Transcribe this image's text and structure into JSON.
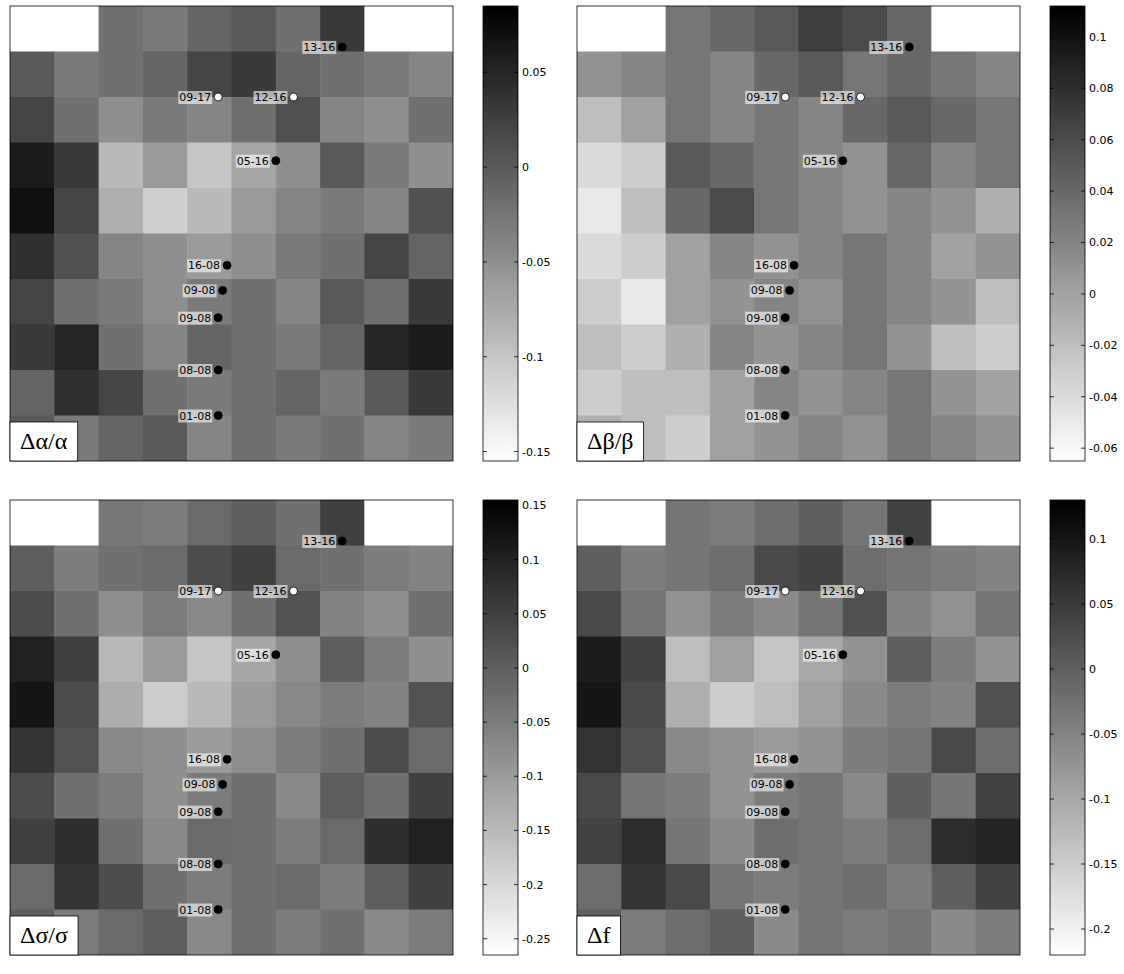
{
  "chart_data": [
    {
      "type": "heatmap",
      "title": "Δα/α",
      "xlim": [
        0,
        10
      ],
      "ylim": [
        10,
        0
      ],
      "tick_labels": false,
      "cells": [
        [
          null,
          null,
          -0.02,
          -0.03,
          -0.01,
          0.0,
          -0.02,
          0.03,
          null,
          null
        ],
        [
          0.0,
          -0.03,
          -0.02,
          -0.01,
          0.02,
          0.03,
          -0.01,
          -0.02,
          -0.03,
          -0.04
        ],
        [
          0.02,
          -0.02,
          -0.05,
          -0.03,
          -0.04,
          -0.02,
          0.01,
          -0.04,
          -0.05,
          -0.02
        ],
        [
          0.06,
          0.03,
          -0.09,
          -0.06,
          -0.1,
          -0.07,
          -0.05,
          0.0,
          -0.03,
          -0.05
        ],
        [
          0.07,
          0.02,
          -0.08,
          -0.11,
          -0.09,
          -0.06,
          -0.04,
          -0.03,
          -0.04,
          0.01
        ],
        [
          0.04,
          0.01,
          -0.04,
          -0.05,
          -0.06,
          -0.05,
          -0.03,
          -0.02,
          0.02,
          -0.01
        ],
        [
          0.02,
          -0.02,
          -0.03,
          -0.05,
          -0.03,
          -0.02,
          -0.04,
          0.0,
          -0.02,
          0.03
        ],
        [
          0.03,
          0.05,
          -0.02,
          -0.04,
          -0.01,
          -0.02,
          -0.03,
          -0.01,
          0.05,
          0.06
        ],
        [
          -0.01,
          0.04,
          0.02,
          -0.02,
          -0.03,
          -0.02,
          -0.01,
          -0.03,
          0.0,
          0.03
        ],
        [
          0.0,
          -0.03,
          -0.01,
          0.0,
          -0.04,
          -0.02,
          -0.03,
          -0.02,
          -0.04,
          -0.03
        ]
      ],
      "color_range": [
        -0.155,
        0.085
      ],
      "color_ticks": [
        0.05,
        0,
        -0.05,
        -0.1,
        -0.15
      ],
      "points": [
        {
          "label": "13-16",
          "x": 7.5,
          "y": 0.9,
          "color": "#000000"
        },
        {
          "label": "09-17",
          "x": 4.7,
          "y": 2.0,
          "color": "#ffffff"
        },
        {
          "label": "12-16",
          "x": 6.4,
          "y": 2.0,
          "color": "#ffffff"
        },
        {
          "label": "05-16",
          "x": 6.0,
          "y": 3.4,
          "color": "#000000"
        },
        {
          "label": "16-08",
          "x": 4.9,
          "y": 5.7,
          "color": "#000000"
        },
        {
          "label": "09-08",
          "x": 4.8,
          "y": 6.25,
          "color": "#000000"
        },
        {
          "label": "09-08",
          "x": 4.7,
          "y": 6.85,
          "color": "#000000"
        },
        {
          "label": "08-08",
          "x": 4.7,
          "y": 8.0,
          "color": "#000000"
        },
        {
          "label": "01-08",
          "x": 4.7,
          "y": 9.0,
          "color": "#000000"
        }
      ]
    },
    {
      "type": "heatmap",
      "title": "Δβ/β",
      "xlim": [
        0,
        10
      ],
      "ylim": [
        10,
        0
      ],
      "tick_labels": false,
      "cells": [
        [
          null,
          null,
          0.03,
          0.04,
          0.05,
          0.07,
          0.06,
          0.04,
          null,
          null
        ],
        [
          0.01,
          0.02,
          0.03,
          0.02,
          0.04,
          0.05,
          0.03,
          0.04,
          0.03,
          0.02
        ],
        [
          -0.02,
          0.0,
          0.03,
          0.02,
          0.03,
          0.02,
          0.04,
          0.05,
          0.04,
          0.03
        ],
        [
          -0.04,
          -0.03,
          0.05,
          0.04,
          0.03,
          0.02,
          0.01,
          0.04,
          0.02,
          0.03
        ],
        [
          -0.05,
          -0.02,
          0.04,
          0.06,
          0.03,
          0.02,
          0.01,
          0.02,
          0.01,
          -0.01
        ],
        [
          -0.04,
          -0.03,
          0.0,
          0.02,
          0.01,
          0.02,
          0.03,
          0.02,
          0.0,
          0.01
        ],
        [
          -0.03,
          -0.05,
          0.0,
          0.01,
          0.02,
          0.01,
          0.03,
          0.02,
          0.01,
          -0.02
        ],
        [
          -0.02,
          -0.03,
          -0.01,
          0.02,
          0.01,
          0.02,
          0.03,
          0.01,
          -0.02,
          -0.03
        ],
        [
          -0.03,
          -0.02,
          -0.02,
          0.0,
          0.02,
          0.01,
          0.02,
          0.03,
          0.01,
          0.0
        ],
        [
          -0.01,
          -0.02,
          -0.03,
          0.0,
          0.01,
          0.02,
          0.01,
          0.03,
          0.02,
          0.01
        ]
      ],
      "color_range": [
        -0.065,
        0.112
      ],
      "color_ticks": [
        0.1,
        0.08,
        0.06,
        0.04,
        0.02,
        0,
        -0.02,
        -0.04,
        -0.06
      ],
      "points": [
        {
          "label": "13-16",
          "x": 7.5,
          "y": 0.9,
          "color": "#000000"
        },
        {
          "label": "09-17",
          "x": 4.7,
          "y": 2.0,
          "color": "#ffffff"
        },
        {
          "label": "12-16",
          "x": 6.4,
          "y": 2.0,
          "color": "#ffffff"
        },
        {
          "label": "05-16",
          "x": 6.0,
          "y": 3.4,
          "color": "#000000"
        },
        {
          "label": "16-08",
          "x": 4.9,
          "y": 5.7,
          "color": "#000000"
        },
        {
          "label": "09-08",
          "x": 4.8,
          "y": 6.25,
          "color": "#000000"
        },
        {
          "label": "09-08",
          "x": 4.7,
          "y": 6.85,
          "color": "#000000"
        },
        {
          "label": "08-08",
          "x": 4.7,
          "y": 8.0,
          "color": "#000000"
        },
        {
          "label": "01-08",
          "x": 4.7,
          "y": 9.0,
          "color": "#000000"
        }
      ]
    },
    {
      "type": "heatmap",
      "title": "Δσ/σ",
      "xlim": [
        0,
        10
      ],
      "ylim": [
        10,
        0
      ],
      "tick_labels": false,
      "cells": [
        [
          null,
          null,
          -0.04,
          -0.05,
          -0.02,
          0.0,
          -0.03,
          0.05,
          null,
          null
        ],
        [
          0.0,
          -0.05,
          -0.03,
          -0.02,
          0.03,
          0.05,
          -0.02,
          -0.03,
          -0.05,
          -0.06
        ],
        [
          0.03,
          -0.03,
          -0.08,
          -0.05,
          -0.07,
          -0.03,
          0.02,
          -0.06,
          -0.08,
          -0.03
        ],
        [
          0.1,
          0.05,
          -0.15,
          -0.1,
          -0.17,
          -0.12,
          -0.08,
          0.0,
          -0.05,
          -0.08
        ],
        [
          0.12,
          0.03,
          -0.13,
          -0.18,
          -0.15,
          -0.1,
          -0.07,
          -0.05,
          -0.06,
          0.02
        ],
        [
          0.07,
          0.02,
          -0.07,
          -0.08,
          -0.1,
          -0.08,
          -0.05,
          -0.03,
          0.03,
          -0.02
        ],
        [
          0.03,
          -0.03,
          -0.05,
          -0.08,
          -0.05,
          -0.03,
          -0.07,
          0.0,
          -0.03,
          0.05
        ],
        [
          0.05,
          0.08,
          -0.03,
          -0.07,
          -0.02,
          -0.03,
          -0.05,
          -0.02,
          0.08,
          0.1
        ],
        [
          -0.02,
          0.07,
          0.03,
          -0.03,
          -0.05,
          -0.03,
          -0.02,
          -0.05,
          0.0,
          0.05
        ],
        [
          0.0,
          -0.05,
          -0.02,
          0.0,
          -0.07,
          -0.03,
          -0.05,
          -0.03,
          -0.07,
          -0.05
        ]
      ],
      "color_range": [
        -0.265,
        0.155
      ],
      "color_ticks": [
        0.15,
        0.1,
        0.05,
        0,
        -0.05,
        -0.1,
        -0.15,
        -0.2,
        -0.25
      ],
      "points": [
        {
          "label": "13-16",
          "x": 7.5,
          "y": 0.9,
          "color": "#000000"
        },
        {
          "label": "09-17",
          "x": 4.7,
          "y": 2.0,
          "color": "#ffffff"
        },
        {
          "label": "12-16",
          "x": 6.4,
          "y": 2.0,
          "color": "#ffffff"
        },
        {
          "label": "05-16",
          "x": 6.0,
          "y": 3.4,
          "color": "#000000"
        },
        {
          "label": "16-08",
          "x": 4.9,
          "y": 5.7,
          "color": "#000000"
        },
        {
          "label": "09-08",
          "x": 4.8,
          "y": 6.25,
          "color": "#000000"
        },
        {
          "label": "09-08",
          "x": 4.7,
          "y": 6.85,
          "color": "#000000"
        },
        {
          "label": "08-08",
          "x": 4.7,
          "y": 8.0,
          "color": "#000000"
        },
        {
          "label": "01-08",
          "x": 4.7,
          "y": 9.0,
          "color": "#000000"
        }
      ]
    },
    {
      "type": "heatmap",
      "title": "Δf",
      "xlim": [
        0,
        10
      ],
      "ylim": [
        10,
        0
      ],
      "tick_labels": false,
      "cells": [
        [
          null,
          null,
          -0.03,
          -0.04,
          -0.02,
          0.0,
          -0.03,
          0.04,
          null,
          null
        ],
        [
          0.0,
          -0.04,
          -0.03,
          -0.02,
          0.03,
          0.04,
          -0.02,
          -0.03,
          -0.04,
          -0.05
        ],
        [
          0.03,
          -0.03,
          -0.07,
          -0.04,
          -0.06,
          -0.03,
          0.02,
          -0.05,
          -0.07,
          -0.03
        ],
        [
          0.09,
          0.04,
          -0.13,
          -0.09,
          -0.14,
          -0.1,
          -0.07,
          0.0,
          -0.04,
          -0.07
        ],
        [
          0.1,
          0.03,
          -0.11,
          -0.15,
          -0.13,
          -0.09,
          -0.06,
          -0.04,
          -0.05,
          0.02
        ],
        [
          0.06,
          0.02,
          -0.06,
          -0.07,
          -0.08,
          -0.07,
          -0.04,
          -0.03,
          0.03,
          -0.02
        ],
        [
          0.03,
          -0.03,
          -0.04,
          -0.07,
          -0.04,
          -0.03,
          -0.06,
          0.0,
          -0.03,
          0.04
        ],
        [
          0.04,
          0.07,
          -0.03,
          -0.06,
          -0.02,
          -0.03,
          -0.04,
          -0.02,
          0.07,
          0.08
        ],
        [
          -0.02,
          0.06,
          0.03,
          -0.03,
          -0.04,
          -0.03,
          -0.02,
          -0.04,
          0.0,
          0.04
        ],
        [
          0.0,
          -0.04,
          -0.02,
          0.0,
          -0.06,
          -0.03,
          -0.04,
          -0.03,
          -0.06,
          -0.04
        ]
      ],
      "color_range": [
        -0.22,
        0.13
      ],
      "color_ticks": [
        0.1,
        0.05,
        0,
        -0.05,
        -0.1,
        -0.15,
        -0.2
      ],
      "points": [
        {
          "label": "13-16",
          "x": 7.5,
          "y": 0.9,
          "color": "#000000"
        },
        {
          "label": "09-17",
          "x": 4.7,
          "y": 2.0,
          "color": "#ffffff"
        },
        {
          "label": "12-16",
          "x": 6.4,
          "y": 2.0,
          "color": "#ffffff"
        },
        {
          "label": "05-16",
          "x": 6.0,
          "y": 3.4,
          "color": "#000000"
        },
        {
          "label": "16-08",
          "x": 4.9,
          "y": 5.7,
          "color": "#000000"
        },
        {
          "label": "09-08",
          "x": 4.8,
          "y": 6.25,
          "color": "#000000"
        },
        {
          "label": "09-08",
          "x": 4.7,
          "y": 6.85,
          "color": "#000000"
        },
        {
          "label": "08-08",
          "x": 4.7,
          "y": 8.0,
          "color": "#000000"
        },
        {
          "label": "01-08",
          "x": 4.7,
          "y": 9.0,
          "color": "#000000"
        }
      ]
    }
  ]
}
